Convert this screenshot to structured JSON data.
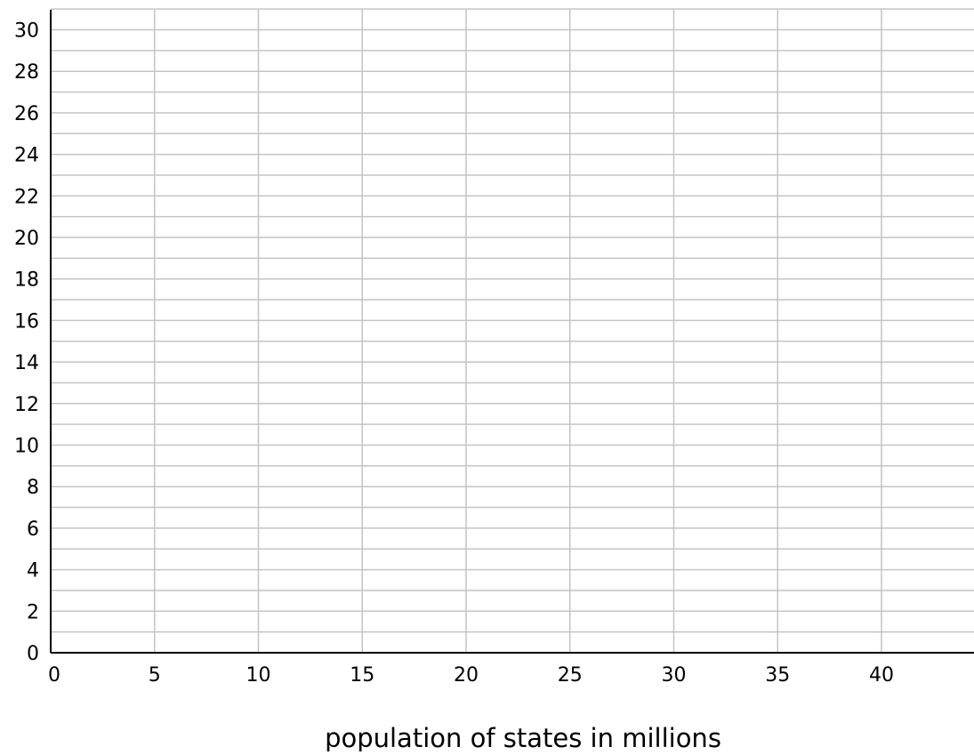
{
  "chart_data": {
    "type": "scatter",
    "title": "",
    "xlabel": "population of states in millions",
    "ylabel": "",
    "xlim": [
      0,
      44.5
    ],
    "ylim": [
      0,
      31
    ],
    "x_ticks": [
      0,
      5,
      10,
      15,
      20,
      25,
      30,
      35,
      40
    ],
    "y_ticks": [
      0,
      2,
      4,
      6,
      8,
      10,
      12,
      14,
      16,
      18,
      20,
      22,
      24,
      26,
      28,
      30
    ],
    "x_grid_step": 5,
    "y_grid_step": 1,
    "grid": true,
    "series": [],
    "grid_color": "#c4c4c4",
    "axis_color": "#000000"
  }
}
